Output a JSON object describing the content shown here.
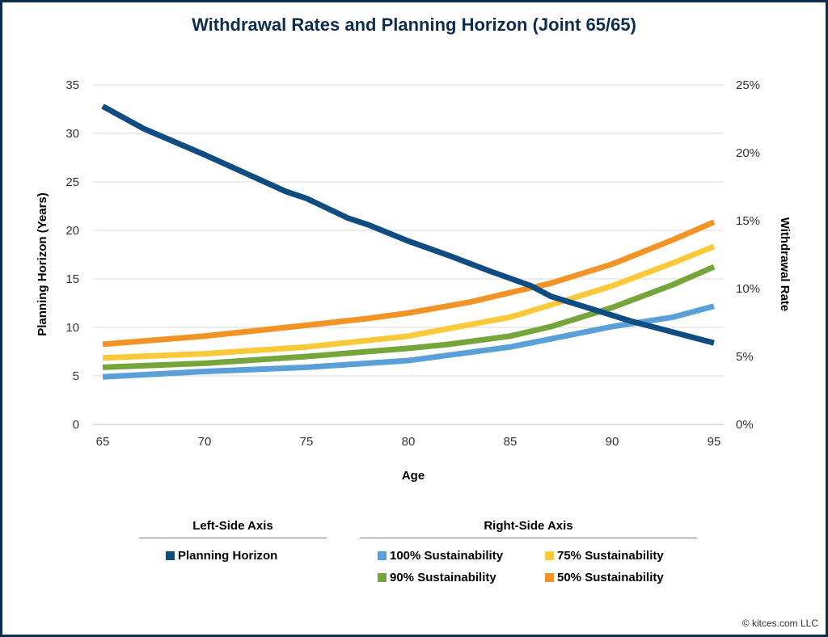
{
  "title": "Withdrawal Rates and Planning Horizon (Joint 65/65)",
  "copyright": "© kitces.com LLC",
  "chart_data": {
    "type": "line",
    "title": "Withdrawal Rates and Planning Horizon (Joint 65/65)",
    "xlabel": "Age",
    "ylabel_left": "Planning Horizon (Years)",
    "ylabel_right": "Withdrawal Rate",
    "xlim": [
      65,
      95
    ],
    "ylim_left": [
      0,
      35
    ],
    "ylim_right": [
      0,
      25
    ],
    "x_ticks": [
      "65",
      "70",
      "75",
      "80",
      "85",
      "90",
      "95"
    ],
    "y_ticks_left": [
      "0",
      "5",
      "10",
      "15",
      "20",
      "25",
      "30",
      "35"
    ],
    "y_ticks_right": [
      "0%",
      "5%",
      "10%",
      "15%",
      "20%",
      "25%"
    ],
    "grid": true,
    "legend_position": "bottom",
    "series": [
      {
        "name": "Planning Horizon",
        "axis": "left",
        "color": "#0f4c81",
        "x": [
          65,
          67,
          70,
          72,
          74,
          75,
          76,
          77,
          78,
          80,
          82,
          84,
          86,
          87,
          89,
          91,
          93,
          95
        ],
        "values": [
          32.8,
          30.5,
          27.8,
          25.9,
          24.0,
          23.3,
          22.3,
          21.3,
          20.6,
          18.9,
          17.4,
          15.8,
          14.3,
          13.2,
          11.9,
          10.6,
          9.5,
          8.4
        ]
      },
      {
        "name": "100% Sustainability",
        "axis": "right",
        "color": "#5aa0d8",
        "x": [
          65,
          70,
          75,
          80,
          85,
          87,
          90,
          93,
          95
        ],
        "values": [
          3.5,
          3.9,
          4.2,
          4.7,
          5.7,
          6.3,
          7.2,
          7.9,
          8.7
        ]
      },
      {
        "name": "90% Sustainability",
        "axis": "right",
        "color": "#76a63b",
        "x": [
          65,
          70,
          75,
          80,
          82,
          85,
          87,
          90,
          93,
          95
        ],
        "values": [
          4.2,
          4.5,
          5.0,
          5.6,
          5.9,
          6.5,
          7.2,
          8.6,
          10.3,
          11.6
        ]
      },
      {
        "name": "75% Sustainability",
        "axis": "right",
        "color": "#f9c93a",
        "x": [
          65,
          70,
          75,
          80,
          85,
          87,
          90,
          93,
          95
        ],
        "values": [
          4.9,
          5.2,
          5.7,
          6.5,
          7.9,
          8.8,
          10.2,
          11.9,
          13.1
        ]
      },
      {
        "name": "50% Sustainability",
        "axis": "right",
        "color": "#f39325",
        "x": [
          65,
          70,
          75,
          78,
          80,
          83,
          85,
          87,
          90,
          93,
          95
        ],
        "values": [
          5.9,
          6.5,
          7.3,
          7.8,
          8.2,
          9.0,
          9.7,
          10.4,
          11.8,
          13.6,
          14.9
        ]
      }
    ]
  },
  "legend": {
    "left_heading": "Left-Side Axis",
    "right_heading": "Right-Side Axis",
    "items": [
      {
        "label": "Planning Horizon",
        "color": "#0f4c81"
      },
      {
        "label": "100% Sustainability",
        "color": "#5aa0d8"
      },
      {
        "label": "75% Sustainability",
        "color": "#f9c93a"
      },
      {
        "label": "90% Sustainability",
        "color": "#76a63b"
      },
      {
        "label": "50% Sustainability",
        "color": "#f39325"
      }
    ]
  }
}
